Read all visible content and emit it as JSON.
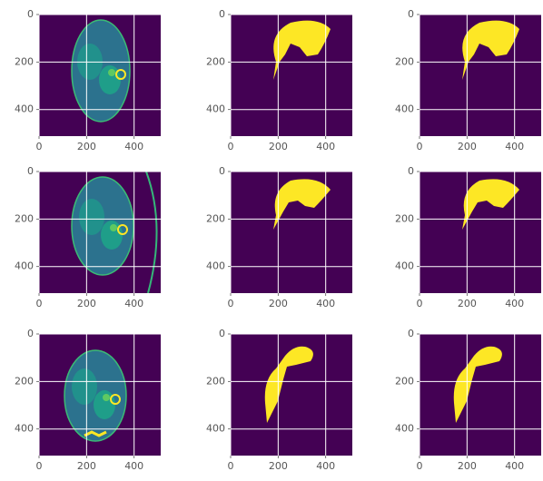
{
  "chart_data": [
    {
      "type": "ct",
      "xlim": [
        0,
        512
      ],
      "ylim": [
        512,
        0
      ],
      "xticks": [
        0,
        200,
        400
      ],
      "yticks": [
        0,
        200,
        400
      ],
      "grid": true
    },
    {
      "type": "mask",
      "xlim": [
        0,
        512
      ],
      "ylim": [
        512,
        0
      ],
      "xticks": [
        0,
        200,
        400
      ],
      "yticks": [
        0,
        200,
        400
      ],
      "grid": true
    },
    {
      "type": "mask",
      "xlim": [
        0,
        512
      ],
      "ylim": [
        512,
        0
      ],
      "xticks": [
        0,
        200,
        400
      ],
      "yticks": [
        0,
        200,
        400
      ],
      "grid": true
    },
    {
      "type": "ct",
      "xlim": [
        0,
        512
      ],
      "ylim": [
        512,
        0
      ],
      "xticks": [
        0,
        200,
        400
      ],
      "yticks": [
        0,
        200,
        400
      ],
      "grid": true
    },
    {
      "type": "mask",
      "xlim": [
        0,
        512
      ],
      "ylim": [
        512,
        0
      ],
      "xticks": [
        0,
        200,
        400
      ],
      "yticks": [
        0,
        200,
        400
      ],
      "grid": true
    },
    {
      "type": "mask",
      "xlim": [
        0,
        512
      ],
      "ylim": [
        512,
        0
      ],
      "xticks": [
        0,
        200,
        400
      ],
      "yticks": [
        0,
        200,
        400
      ],
      "grid": true
    },
    {
      "type": "ct",
      "xlim": [
        0,
        512
      ],
      "ylim": [
        512,
        0
      ],
      "xticks": [
        0,
        200,
        400
      ],
      "yticks": [
        0,
        200,
        400
      ],
      "grid": true
    },
    {
      "type": "mask",
      "xlim": [
        0,
        512
      ],
      "ylim": [
        512,
        0
      ],
      "xticks": [
        0,
        200,
        400
      ],
      "yticks": [
        0,
        200,
        400
      ],
      "grid": true
    },
    {
      "type": "mask",
      "xlim": [
        0,
        512
      ],
      "ylim": [
        512,
        0
      ],
      "xticks": [
        0,
        200,
        400
      ],
      "yticks": [
        0,
        200,
        400
      ],
      "grid": true
    }
  ]
}
